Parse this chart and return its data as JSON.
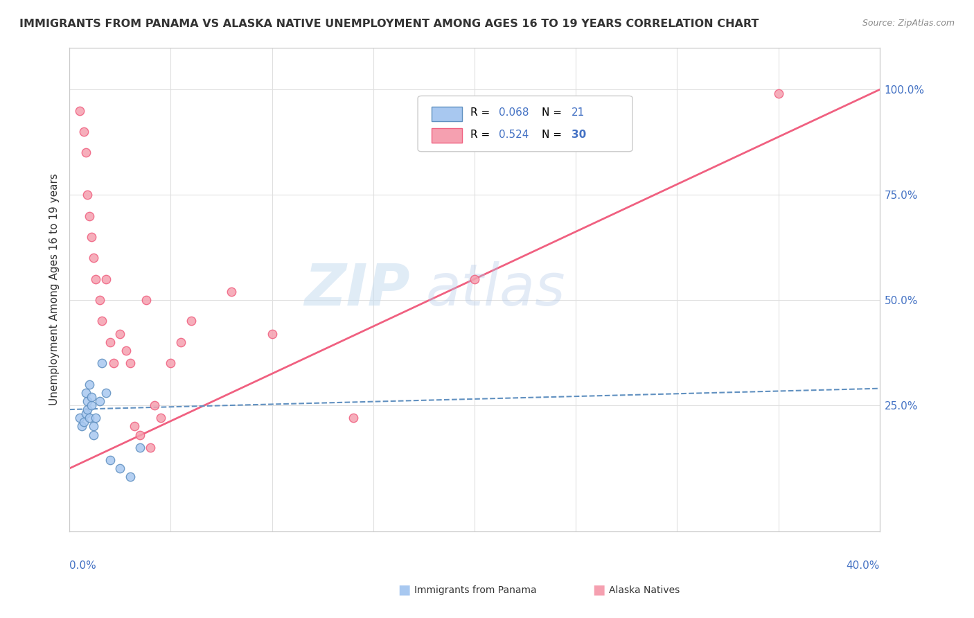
{
  "title": "IMMIGRANTS FROM PANAMA VS ALASKA NATIVE UNEMPLOYMENT AMONG AGES 16 TO 19 YEARS CORRELATION CHART",
  "source": "Source: ZipAtlas.com",
  "ylabel": "Unemployment Among Ages 16 to 19 years",
  "watermark_zip": "ZIP",
  "watermark_atlas": "atlas",
  "blue_scatter_x": [
    0.005,
    0.006,
    0.007,
    0.008,
    0.008,
    0.009,
    0.009,
    0.01,
    0.01,
    0.011,
    0.011,
    0.012,
    0.012,
    0.013,
    0.015,
    0.016,
    0.018,
    0.02,
    0.025,
    0.03,
    0.035
  ],
  "blue_scatter_y": [
    0.22,
    0.2,
    0.21,
    0.23,
    0.28,
    0.24,
    0.26,
    0.22,
    0.3,
    0.25,
    0.27,
    0.2,
    0.18,
    0.22,
    0.26,
    0.35,
    0.28,
    0.12,
    0.1,
    0.08,
    0.15
  ],
  "pink_scatter_x": [
    0.005,
    0.007,
    0.008,
    0.009,
    0.01,
    0.011,
    0.012,
    0.013,
    0.015,
    0.016,
    0.018,
    0.02,
    0.022,
    0.025,
    0.028,
    0.03,
    0.032,
    0.035,
    0.038,
    0.04,
    0.042,
    0.045,
    0.05,
    0.055,
    0.06,
    0.08,
    0.1,
    0.14,
    0.2,
    0.35
  ],
  "pink_scatter_y": [
    0.95,
    0.9,
    0.85,
    0.75,
    0.7,
    0.65,
    0.6,
    0.55,
    0.5,
    0.45,
    0.55,
    0.4,
    0.35,
    0.42,
    0.38,
    0.35,
    0.2,
    0.18,
    0.5,
    0.15,
    0.25,
    0.22,
    0.35,
    0.4,
    0.45,
    0.52,
    0.42,
    0.22,
    0.55,
    0.99
  ],
  "blue_line_x": [
    0.0,
    0.4
  ],
  "blue_line_y": [
    0.24,
    0.29
  ],
  "pink_line_x": [
    0.0,
    0.4
  ],
  "pink_line_y": [
    0.1,
    1.0
  ],
  "blue_color": "#a8c8f0",
  "pink_color": "#f5a0b0",
  "blue_line_color": "#6090c0",
  "pink_line_color": "#f06080",
  "grid_color": "#e0e0e0",
  "background_color": "#ffffff",
  "xlim": [
    0.0,
    0.4
  ],
  "ylim": [
    -0.05,
    1.1
  ],
  "legend_blue_r": "R = 0.068",
  "legend_blue_n": "N =  21",
  "legend_pink_r": "R = 0.524",
  "legend_pink_n": "N = 30",
  "label_panama": "Immigrants from Panama",
  "label_alaska": "Alaska Natives"
}
